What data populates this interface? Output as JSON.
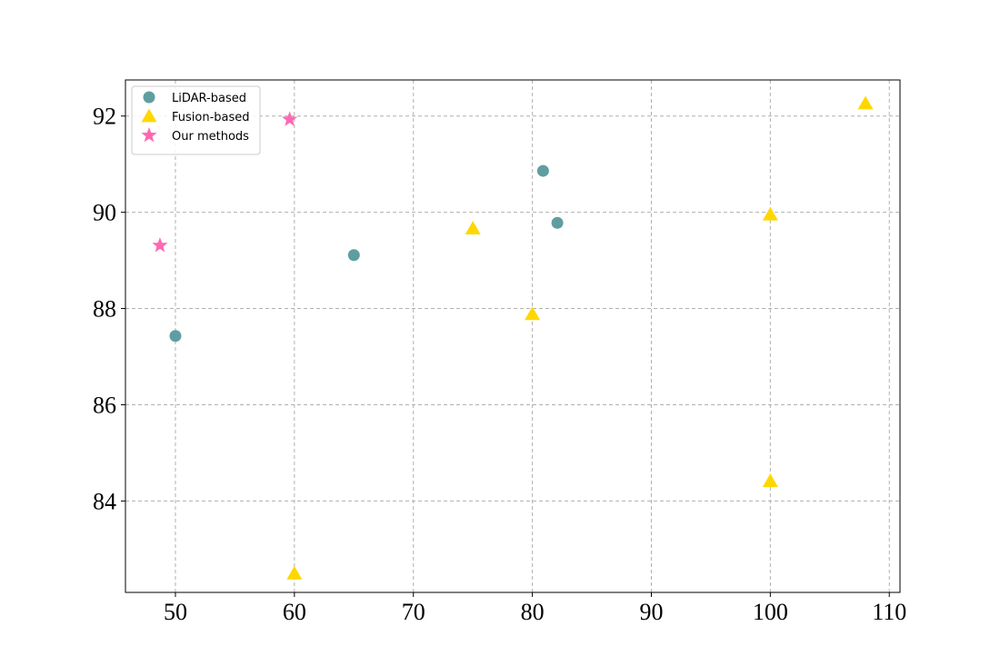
{
  "chart_data": {
    "type": "scatter",
    "title": "",
    "xlabel": "",
    "ylabel": "",
    "xlim": [
      45.8,
      110.9
    ],
    "ylim": [
      82.1,
      92.75
    ],
    "xticks": [
      50,
      60,
      70,
      80,
      90,
      100,
      110
    ],
    "yticks": [
      84,
      86,
      88,
      90,
      92
    ],
    "grid": true,
    "legend_position": "top-left",
    "series": [
      {
        "name": "LiDAR-based",
        "marker": "circle",
        "color": "#5f9ea0",
        "points": [
          {
            "x": 50,
            "y": 87.43
          },
          {
            "x": 65,
            "y": 89.11
          },
          {
            "x": 80.9,
            "y": 90.86
          },
          {
            "x": 82.1,
            "y": 89.78
          }
        ]
      },
      {
        "name": "Fusion-based",
        "marker": "triangle",
        "color": "#ffd700",
        "points": [
          {
            "x": 60,
            "y": 82.49
          },
          {
            "x": 75,
            "y": 89.66
          },
          {
            "x": 80,
            "y": 87.88
          },
          {
            "x": 100,
            "y": 89.95
          },
          {
            "x": 100,
            "y": 84.41
          },
          {
            "x": 108,
            "y": 92.26
          }
        ]
      },
      {
        "name": "Our methods",
        "marker": "star",
        "color": "#ff69b4",
        "points": [
          {
            "x": 48.7,
            "y": 89.31
          },
          {
            "x": 59.6,
            "y": 91.93
          }
        ]
      }
    ]
  }
}
